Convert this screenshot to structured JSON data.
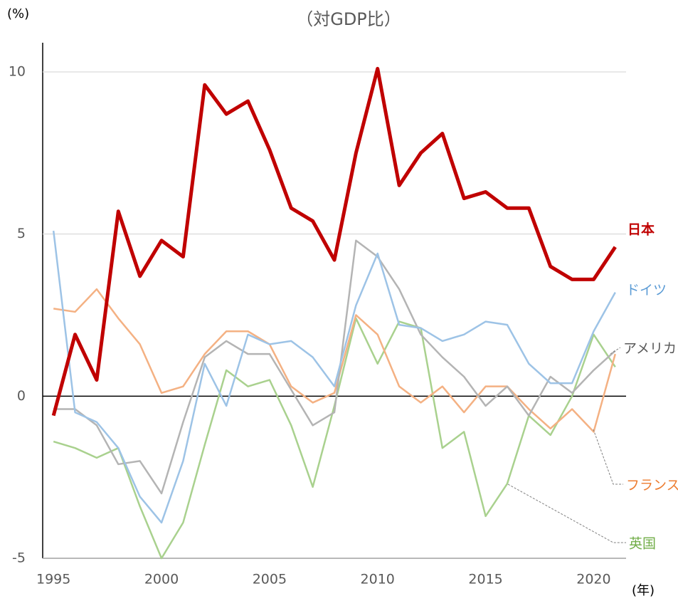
{
  "chart_data": {
    "type": "line",
    "title": "（対GDP比）",
    "y_label": "(%)",
    "x_label": "(年)",
    "x": [
      1995,
      1996,
      1997,
      1998,
      1999,
      2000,
      2001,
      2002,
      2003,
      2004,
      2005,
      2006,
      2007,
      2008,
      2009,
      2010,
      2011,
      2012,
      2013,
      2014,
      2015,
      2016,
      2017,
      2018,
      2019,
      2020,
      2021
    ],
    "series": [
      {
        "name": "日本",
        "color": "#c00000",
        "values": [
          -0.6,
          1.9,
          0.5,
          5.7,
          3.7,
          4.8,
          4.3,
          9.6,
          8.7,
          9.1,
          7.6,
          5.8,
          5.4,
          4.2,
          7.5,
          10.1,
          6.5,
          7.5,
          8.1,
          6.1,
          6.3,
          5.8,
          5.8,
          4.0,
          3.6,
          3.6,
          4.6
        ]
      },
      {
        "name": "ドイツ",
        "color": "#9dc3e6",
        "values": [
          5.1,
          -0.5,
          -0.8,
          -1.6,
          -3.1,
          -3.9,
          -2.0,
          1.0,
          -0.3,
          1.9,
          1.6,
          1.7,
          1.2,
          0.3,
          2.8,
          4.4,
          2.2,
          2.1,
          1.7,
          1.9,
          2.3,
          2.2,
          1.0,
          0.4,
          0.4,
          2.0,
          3.2
        ]
      },
      {
        "name": "アメリカ",
        "color": "#b4b4b4",
        "values": [
          -0.4,
          -0.4,
          -0.9,
          -2.1,
          -2.0,
          -3.0,
          -0.8,
          1.2,
          1.7,
          1.3,
          1.3,
          0.2,
          -0.9,
          -0.5,
          4.8,
          4.3,
          3.3,
          1.9,
          1.2,
          0.6,
          -0.3,
          0.3,
          -0.6,
          0.6,
          0.1,
          0.8,
          1.4
        ]
      },
      {
        "name": "フランス",
        "color": "#f4b183",
        "values": [
          2.7,
          2.6,
          3.3,
          2.4,
          1.6,
          0.1,
          0.3,
          1.3,
          2.0,
          2.0,
          1.6,
          0.3,
          -0.2,
          0.1,
          2.5,
          1.9,
          0.3,
          -0.2,
          0.3,
          -0.5,
          0.3,
          0.3,
          -0.4,
          -1.0,
          -0.4,
          -1.1,
          1.3
        ]
      },
      {
        "name": "英国",
        "color": "#a9d18e",
        "values": [
          -1.4,
          -1.6,
          -1.9,
          -1.6,
          -3.4,
          -5.0,
          -3.9,
          -1.5,
          0.8,
          0.3,
          0.5,
          -0.9,
          -2.8,
          -0.3,
          2.4,
          1.0,
          2.3,
          2.1,
          -1.6,
          -1.1,
          -3.7,
          -2.7,
          -0.6,
          -1.2,
          0.0,
          1.9,
          0.9
        ]
      }
    ],
    "xlim": [
      1994.5,
      2021.5
    ],
    "xticks": [
      1995,
      2000,
      2005,
      2010,
      2015,
      2020
    ],
    "ylim": [
      -5,
      10.9
    ],
    "yticks": [
      -5,
      0,
      5,
      10
    ],
    "grid": true
  }
}
